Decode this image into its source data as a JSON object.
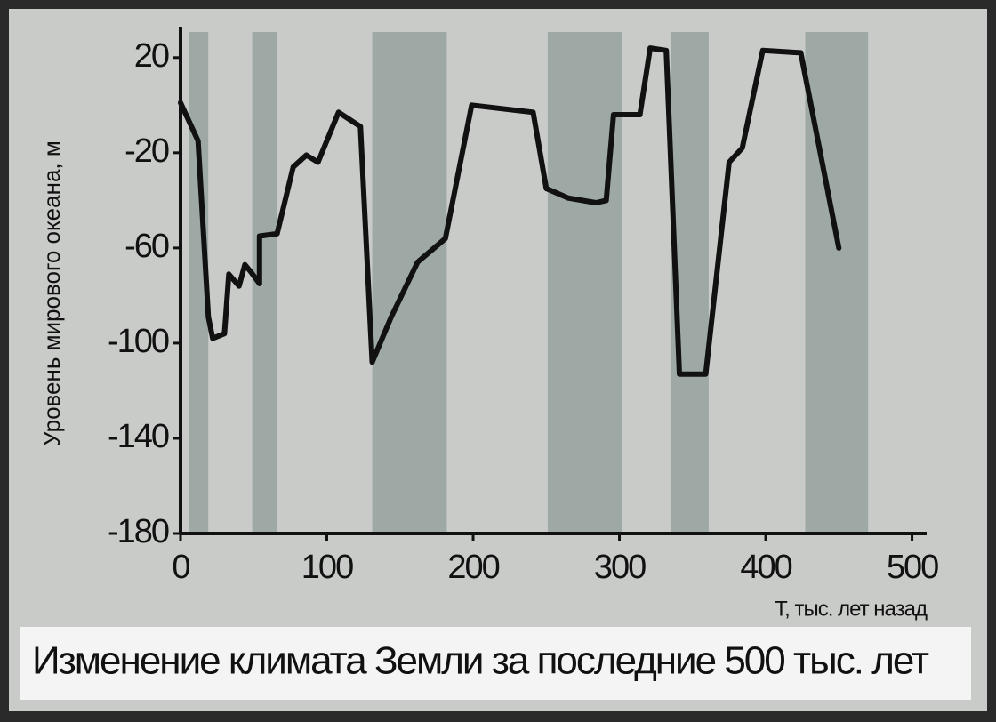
{
  "chart_data": {
    "type": "line",
    "title": "Изменение климата Земли за последние 500 тыс. лет",
    "y_label": "Уровень мирового океана, м",
    "x_label": "T, тыс. лет назад",
    "x": [
      0,
      12,
      19,
      22,
      30,
      33,
      40,
      44,
      48,
      54,
      54,
      66,
      77,
      86,
      94,
      108,
      123,
      131,
      144,
      162,
      181,
      199,
      241,
      250,
      265,
      284,
      291,
      296,
      314,
      321,
      332,
      341,
      359,
      375,
      384,
      398,
      424,
      450
    ],
    "values": [
      1,
      -15,
      -89,
      -98,
      -96,
      -71,
      -76,
      -67,
      -70,
      -75,
      -55,
      -54,
      -26,
      -21,
      -24,
      -3,
      -9,
      -108,
      -89,
      -66,
      -56,
      0,
      -3,
      -35,
      -39,
      -41,
      -40,
      -4,
      -4,
      24,
      23,
      -113,
      -113,
      -24,
      -18,
      23,
      22,
      -60
    ],
    "color": "#111111",
    "bands": [
      [
        6,
        19
      ],
      [
        49,
        66
      ],
      [
        131,
        182
      ],
      [
        251,
        302
      ],
      [
        335,
        361
      ],
      [
        427,
        470
      ]
    ],
    "band_color": "#9ea9a6",
    "xlim": [
      0,
      510
    ],
    "ylim": [
      -180,
      33
    ],
    "xticks": [
      0,
      100,
      200,
      300,
      400,
      500
    ],
    "yticks": [
      20,
      -20,
      -60,
      -100,
      -140,
      -180
    ]
  }
}
